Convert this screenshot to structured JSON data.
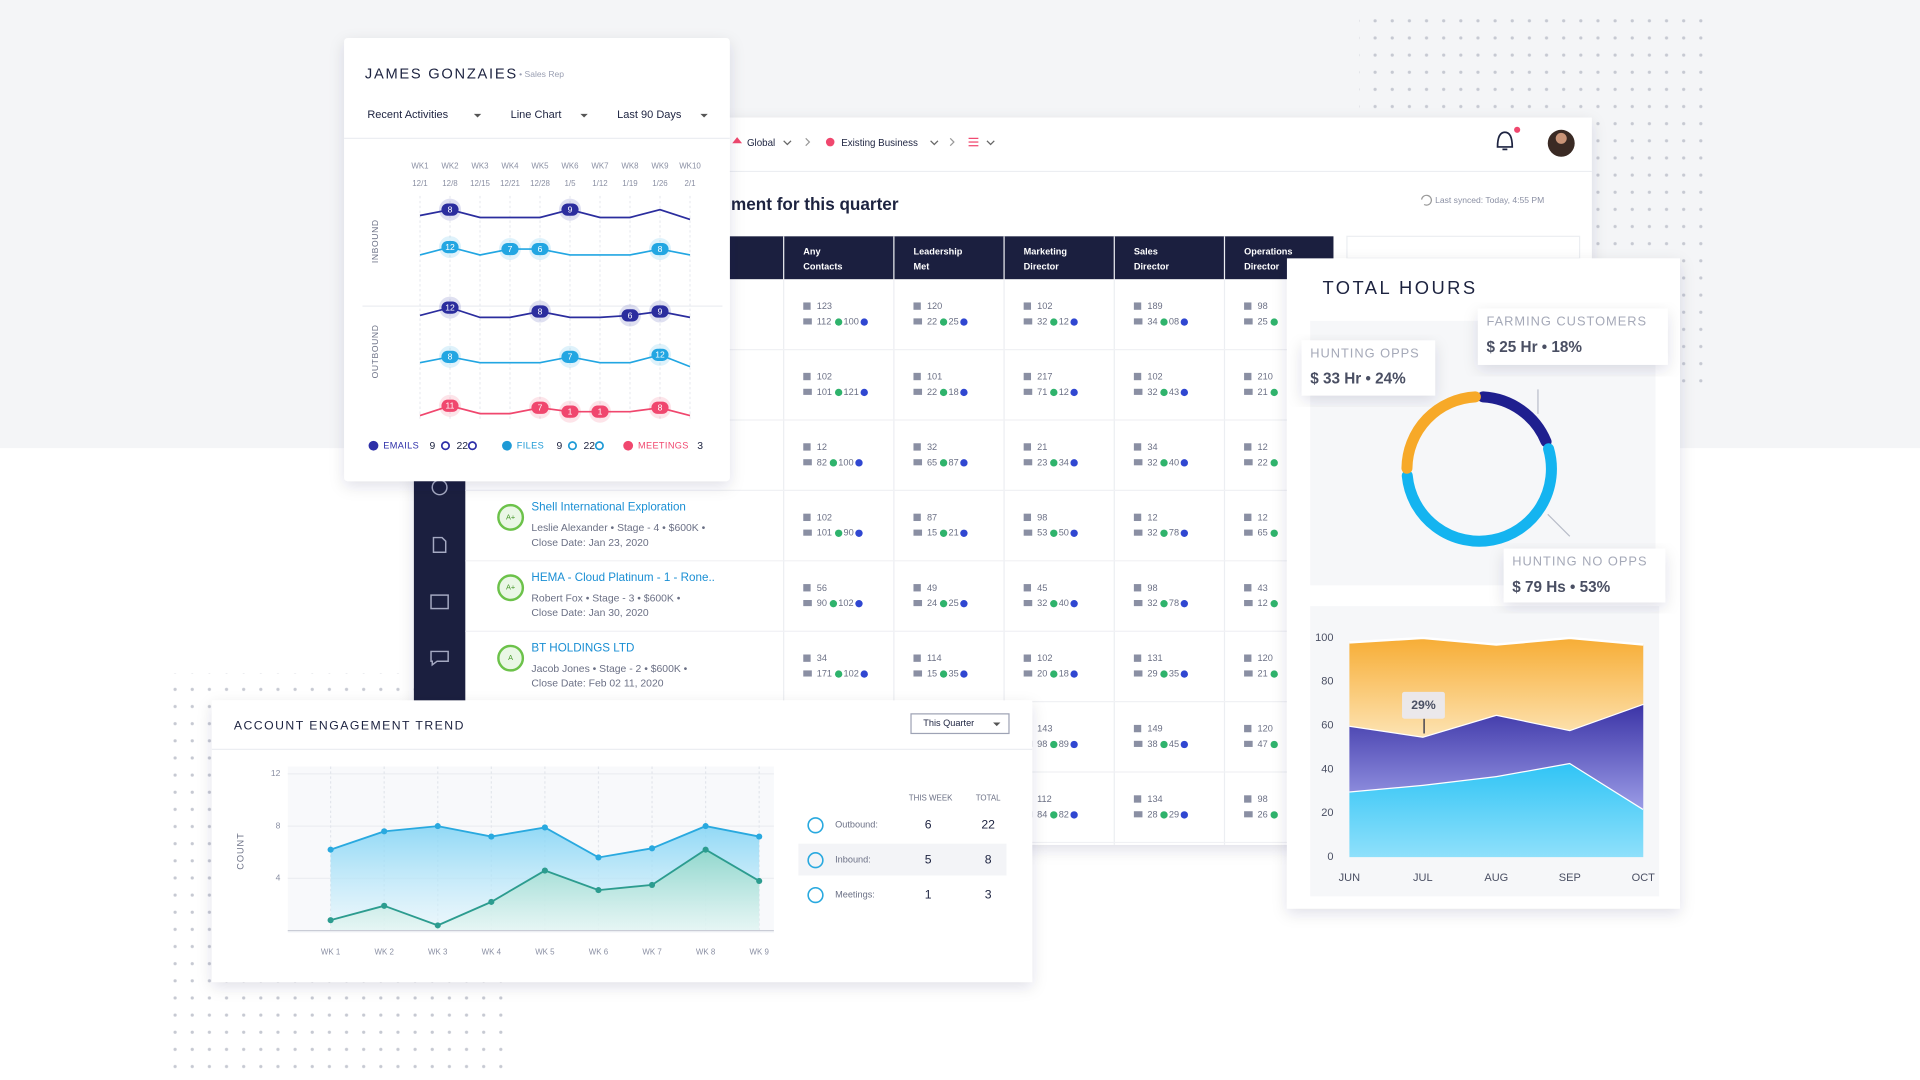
{
  "activity": {
    "name": "JAMES GONZAIES",
    "role": "• Sales Rep",
    "controls": [
      "Recent Activities",
      "Line Chart",
      "Last 90 Days"
    ],
    "weeks": [
      "WK1",
      "WK2",
      "WK3",
      "WK4",
      "WK5",
      "WK6",
      "WK7",
      "WK8",
      "WK9",
      "WK10"
    ],
    "dates": [
      "12/1",
      "12/8",
      "12/15",
      "12/21",
      "12/28",
      "1/5",
      "1/12",
      "1/19",
      "1/26",
      "2/1"
    ],
    "groups": [
      "INBOUND",
      "OUTBOUND"
    ],
    "ylim": [
      0,
      10
    ],
    "lines": [
      {
        "color": "#2b2d9e",
        "values": [
          5,
          8,
          4,
          4,
          4,
          8,
          4,
          4,
          8,
          3
        ],
        "badges": [
          null,
          8,
          null,
          null,
          null,
          9,
          null,
          null,
          null,
          null
        ]
      },
      {
        "color": "#22a6e2",
        "values": [
          3,
          7,
          3,
          6,
          6,
          3,
          3,
          3,
          6,
          3
        ],
        "badges": [
          null,
          12,
          null,
          7,
          6,
          null,
          null,
          null,
          8,
          null
        ]
      },
      {
        "color": "#2b2d9e",
        "values": [
          4,
          8,
          3,
          3,
          6,
          3,
          3,
          4,
          6,
          3
        ],
        "badges": [
          null,
          12,
          null,
          null,
          8,
          null,
          null,
          6,
          9,
          null
        ]
      },
      {
        "color": "#22a6e2",
        "values": [
          3,
          6,
          3,
          3,
          3,
          6,
          3,
          3,
          7,
          1
        ],
        "badges": [
          null,
          8,
          null,
          null,
          null,
          7,
          null,
          null,
          12,
          null
        ]
      },
      {
        "color": "#f0476e",
        "values": [
          1,
          6,
          2,
          2,
          5,
          3,
          3,
          3,
          5,
          1
        ],
        "badges": [
          null,
          11,
          null,
          null,
          7,
          1,
          1,
          null,
          8,
          null
        ]
      }
    ],
    "legend": [
      {
        "name": "EMAILS",
        "color": "#2d2fa8",
        "counts": [
          9,
          22
        ]
      },
      {
        "name": "FILES",
        "color": "#1e9ad6",
        "counts": [
          9,
          22
        ]
      },
      {
        "name": "MEETINGS",
        "color": "#f0476e",
        "counts": [
          3
        ]
      }
    ]
  },
  "main": {
    "breadcrumb": [
      "Global",
      "Existing Business"
    ],
    "heading": "ment for this quarter",
    "synced": "Last synced: Today, 4:55 PM",
    "columns": [
      [
        "Any",
        "Contacts"
      ],
      [
        "Leadership",
        "Met"
      ],
      [
        "Marketing",
        "Director"
      ],
      [
        "Sales",
        "Director"
      ],
      [
        "Operations",
        "Director"
      ]
    ],
    "rows": [
      {
        "cells": [
          [
            "123",
            "112",
            "100"
          ],
          [
            "120",
            "22",
            "25"
          ],
          [
            "102",
            "32",
            "12"
          ],
          [
            "189",
            "34",
            "08"
          ],
          [
            "98",
            "25"
          ]
        ]
      },
      {
        "cells": [
          [
            "102",
            "101",
            "121"
          ],
          [
            "101",
            "22",
            "18"
          ],
          [
            "217",
            "71",
            "12"
          ],
          [
            "102",
            "32",
            "43"
          ],
          [
            "210",
            "21"
          ]
        ]
      },
      {
        "cells": [
          [
            "12",
            "82",
            "100"
          ],
          [
            "32",
            "65",
            "87"
          ],
          [
            "21",
            "23",
            "34"
          ],
          [
            "34",
            "32",
            "40"
          ],
          [
            "12",
            "22"
          ]
        ]
      },
      {
        "account": {
          "avatar": "A+",
          "name": "Shell International Exploration",
          "details": "Leslie Alexander • Stage - 4 • $600K •",
          "close": "Close Date: Jan 23, 2020"
        },
        "cells": [
          [
            "102",
            "101",
            "90"
          ],
          [
            "87",
            "15",
            "21"
          ],
          [
            "98",
            "53",
            "50"
          ],
          [
            "12",
            "32",
            "78"
          ],
          [
            "12",
            "65"
          ]
        ]
      },
      {
        "account": {
          "avatar": "A+",
          "name": "HEMA - Cloud Platinum - 1 - Rone..",
          "details": "Robert Fox • Stage - 3 • $600K •",
          "close": "Close Date: Jan 30, 2020"
        },
        "cells": [
          [
            "56",
            "90",
            "102"
          ],
          [
            "49",
            "24",
            "25"
          ],
          [
            "45",
            "32",
            "40"
          ],
          [
            "98",
            "32",
            "78"
          ],
          [
            "43",
            "12"
          ]
        ]
      },
      {
        "account": {
          "avatar": "A",
          "name": "BT HOLDINGS LTD",
          "details": "Jacob Jones • Stage - 2 • $600K •",
          "close": "Close Date: Feb 02 11, 2020"
        },
        "cells": [
          [
            "34",
            "171",
            "102"
          ],
          [
            "114",
            "15",
            "35"
          ],
          [
            "102",
            "20",
            "18"
          ],
          [
            "131",
            "29",
            "35"
          ],
          [
            "120",
            "21"
          ]
        ]
      },
      {
        "cells": [
          null,
          null,
          [
            "143",
            "98",
            "89"
          ],
          [
            "149",
            "38",
            "45"
          ],
          [
            "120",
            "47"
          ]
        ]
      },
      {
        "cells": [
          null,
          null,
          [
            "112",
            "84",
            "82"
          ],
          [
            "134",
            "28",
            "29"
          ],
          [
            "98",
            "26"
          ]
        ]
      }
    ]
  },
  "engagement": {
    "title": "ACCOUNT ENGAGEMENT TREND",
    "filter": "This Quarter",
    "y_label": "COUNT",
    "ylim": [
      0,
      12
    ],
    "yticks": [
      4,
      8,
      12
    ],
    "categories": [
      "WK 1",
      "WK 2",
      "WK 3",
      "WK 4",
      "WK 5",
      "WK 6",
      "WK 7",
      "WK 8",
      "WK 9"
    ],
    "series": [
      {
        "color": "#29a9df",
        "values": [
          6.2,
          7.6,
          8.0,
          7.2,
          7.9,
          5.6,
          6.3,
          8.0,
          7.2
        ]
      },
      {
        "color": "#2c9c8f",
        "values": [
          0.8,
          1.9,
          0.4,
          2.2,
          4.6,
          3.1,
          3.5,
          6.2,
          3.8
        ]
      }
    ],
    "stats": {
      "headers": [
        "THIS WEEK",
        "TOTAL"
      ],
      "rows": [
        {
          "label": "Outbound:",
          "this_week": 6,
          "total": 22
        },
        {
          "label": "Inbound:",
          "this_week": 5,
          "total": 8
        },
        {
          "label": "Meetings:",
          "this_week": 1,
          "total": 3
        }
      ]
    }
  },
  "hours": {
    "title": "TOTAL HOURS",
    "segments": [
      {
        "name": "HUNTING OPPS",
        "label": "$ 33 Hr • 24%",
        "value": 24,
        "color": "#f7a928"
      },
      {
        "name": "FARMING CUSTOMERS",
        "label": "$ 25 Hr • 18%",
        "value": 18,
        "color": "#1f1f8f"
      },
      {
        "name": "HUNTING NO OPPS",
        "label": "$ 79 Hs • 53%",
        "value": 53,
        "color": "#14b4f0"
      }
    ],
    "chart": {
      "type": "area",
      "stacked": true,
      "categories": [
        "JUN",
        "JUL",
        "AUG",
        "SEP",
        "OCT"
      ],
      "ylim": [
        0,
        100
      ],
      "yticks": [
        0,
        20,
        40,
        60,
        80,
        100
      ],
      "series": [
        {
          "color": "#2fc4f5",
          "values": [
            30,
            33,
            37,
            43,
            22
          ]
        },
        {
          "color": "#3b33a6",
          "values": [
            30,
            22,
            28,
            15,
            48
          ]
        },
        {
          "color": "#f7ad35",
          "values": [
            38,
            45,
            32,
            42,
            27
          ]
        }
      ],
      "annotation": "29%"
    }
  }
}
